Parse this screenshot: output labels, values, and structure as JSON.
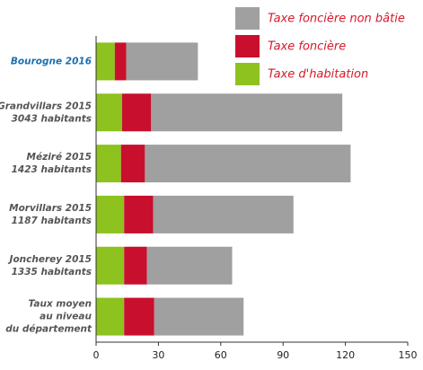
{
  "chart_data": {
    "type": "stacked-barh",
    "categories": [
      [
        "Bourogne 2016"
      ],
      [
        "Grandvillars 2015",
        "3043 habitants"
      ],
      [
        "Méziré 2015",
        "1423 habitants"
      ],
      [
        "Morvillars 2015",
        "1187 habitants"
      ],
      [
        "Joncherey 2015",
        "1335 habitants"
      ],
      [
        "Taux moyen",
        "au niveau",
        "du département"
      ]
    ],
    "highlight": 0,
    "series": [
      {
        "name": "Taxe d'habitation",
        "color": "#8dc21f",
        "values": [
          9,
          12.5,
          12,
          13.5,
          13.5,
          13.5
        ]
      },
      {
        "name": "Taxe foncière",
        "color": "#c8102e",
        "values": [
          5.5,
          14,
          11.5,
          14,
          11,
          14.5
        ]
      },
      {
        "name": "Taxe foncière non bâtie",
        "color": "#a0a0a0",
        "values": [
          34.5,
          92,
          99,
          67.5,
          41,
          43
        ]
      }
    ],
    "xlim": [
      0,
      150
    ],
    "xticks": [
      0,
      30,
      60,
      90,
      120,
      150
    ]
  }
}
